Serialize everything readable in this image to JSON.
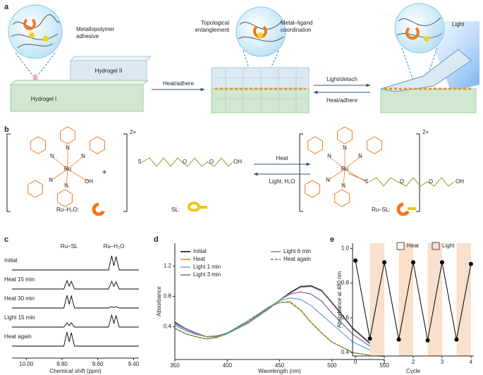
{
  "panel_labels": [
    "a",
    "b",
    "c",
    "d",
    "e"
  ],
  "diagram_a": {
    "adhesive_label": [
      "Metallopolymer",
      "adhesive"
    ],
    "hydrogel_2": "Hydrogel II",
    "hydrogel_1": "Hydrogel I",
    "step_1": "Heat/adhere",
    "entanglement_label": [
      "Topological",
      "entanglement"
    ],
    "coordination_label": [
      "Metal–ligand",
      "coordination"
    ],
    "forward": "Light/detach",
    "reverse": "Heat/adhere",
    "light": "Light"
  },
  "diagram_b": {
    "complex_1": {
      "charge": "2+",
      "atoms": [
        "N",
        "N",
        "N",
        "Ru",
        "N",
        "N",
        "OH"
      ]
    },
    "plus": "+",
    "ligand_atoms": [
      "S",
      "O",
      "O",
      "OH"
    ],
    "forward": "Heat",
    "reverse": "Light, H₂O",
    "complex_2": {
      "charge": "2+",
      "atoms": [
        "N",
        "N",
        "N",
        "Ru",
        "N",
        "N",
        "S",
        "O",
        "O",
        "OH"
      ]
    },
    "key": [
      "Ru–H₂O:",
      "SL:",
      "Ru–SL:"
    ]
  },
  "chart_data": [
    {
      "type": "spectra",
      "xlabel": "Chemical shift (ppm)",
      "annotations": [
        "Ru–SL",
        "Ru–H₂O"
      ],
      "xlim": [
        10.08,
        9.37
      ],
      "xticks": [
        {
          "value": 10,
          "label": "10.00"
        },
        {
          "value": 9.8,
          "label": "9.80"
        },
        {
          "value": 9.6,
          "label": "9.60"
        },
        {
          "value": 9.4,
          "label": "9.40"
        }
      ],
      "x": [
        10.08,
        9.79,
        9.772,
        9.76,
        9.748,
        9.73,
        9.54,
        9.522,
        9.51,
        9.498,
        9.48,
        9.37
      ],
      "color": "#000000",
      "series": [
        {
          "name": "Initial",
          "values": [
            0,
            0,
            0,
            0,
            0,
            0,
            0,
            1.0,
            0.3,
            0.95,
            0,
            0
          ]
        },
        {
          "name": "Heat 15 min",
          "values": [
            0,
            0,
            0.6,
            0.2,
            0.55,
            0,
            0,
            0.55,
            0.18,
            0.5,
            0,
            0
          ]
        },
        {
          "name": "Heat 30 min",
          "values": [
            0,
            0,
            0.9,
            0.3,
            0.85,
            0,
            0,
            0.1,
            0.03,
            0.1,
            0,
            0
          ]
        },
        {
          "name": "Light 15 min",
          "values": [
            0,
            0,
            0.3,
            0.1,
            0.3,
            0,
            0,
            0.85,
            0.28,
            0.8,
            0,
            0
          ]
        },
        {
          "name": "Heat again",
          "values": [
            0,
            0,
            1.0,
            0.3,
            0.95,
            0,
            0,
            0,
            0,
            0,
            0,
            0
          ]
        }
      ]
    },
    {
      "type": "line",
      "xlabel": "Wavelength (nm)",
      "ylabel": "Absorbance",
      "xlim": [
        350,
        550
      ],
      "xticks": [
        350,
        400,
        450,
        500,
        550
      ],
      "ylim": [
        -0.03,
        1.5
      ],
      "yticks": [
        0.4,
        0.8,
        1.2
      ],
      "x": [
        350,
        360,
        370,
        380,
        390,
        400,
        420,
        440,
        450,
        460,
        470,
        480,
        490,
        500,
        520,
        540,
        550
      ],
      "series": [
        {
          "name": "Initial",
          "color": "#000000",
          "values": [
            0.46,
            0.38,
            0.32,
            0.27,
            0.27,
            0.31,
            0.45,
            0.64,
            0.75,
            0.85,
            0.93,
            0.94,
            0.88,
            0.72,
            0.38,
            0.14,
            0.08
          ]
        },
        {
          "name": "Heat",
          "color": "#e8821e",
          "values": [
            0.38,
            0.31,
            0.27,
            0.24,
            0.26,
            0.31,
            0.48,
            0.66,
            0.72,
            0.73,
            0.62,
            0.46,
            0.32,
            0.2,
            0.06,
            0.02,
            0.01
          ]
        },
        {
          "name": "Light 1 min",
          "color": "#6fa8dc",
          "values": [
            0.42,
            0.35,
            0.3,
            0.27,
            0.28,
            0.32,
            0.48,
            0.66,
            0.74,
            0.78,
            0.76,
            0.68,
            0.56,
            0.44,
            0.2,
            0.07,
            0.05
          ]
        },
        {
          "name": "Light 3 min",
          "color": "#8e5fb5",
          "values": [
            0.44,
            0.37,
            0.31,
            0.27,
            0.28,
            0.31,
            0.46,
            0.65,
            0.75,
            0.83,
            0.86,
            0.83,
            0.74,
            0.58,
            0.3,
            0.11,
            0.07
          ]
        },
        {
          "name": "Light 6 min",
          "color": "#8a8a8a",
          "values": [
            0.45,
            0.38,
            0.32,
            0.27,
            0.27,
            0.31,
            0.45,
            0.64,
            0.75,
            0.84,
            0.92,
            0.93,
            0.87,
            0.71,
            0.37,
            0.13,
            0.08
          ]
        },
        {
          "name": "Heat again",
          "color": "#3a9a3a",
          "linestyle": "dashed",
          "values": [
            0.38,
            0.31,
            0.27,
            0.24,
            0.26,
            0.31,
            0.48,
            0.66,
            0.72,
            0.72,
            0.62,
            0.46,
            0.32,
            0.2,
            0.06,
            0.02,
            0.01
          ]
        }
      ]
    },
    {
      "type": "cycle",
      "xlabel": "Cycle",
      "ylabel": "Absorbance at 480 nm",
      "xlim": [
        -0.1,
        4.1
      ],
      "xticks": [
        0,
        1,
        2,
        3,
        4
      ],
      "ylim": [
        0.38,
        1.03
      ],
      "yticks": [
        0.4,
        0.6,
        0.8,
        {
          "value": 1,
          "label": "1.0"
        }
      ],
      "x": [
        0,
        0.5,
        1,
        1.5,
        2,
        2.5,
        3,
        3.5,
        4
      ],
      "values": [
        0.93,
        0.48,
        0.92,
        0.475,
        0.92,
        0.47,
        0.92,
        0.475,
        0.91
      ],
      "color": "#000000",
      "bands": [
        [
          0.5,
          1
        ],
        [
          1.5,
          2
        ],
        [
          2.5,
          3
        ],
        [
          3.5,
          4
        ]
      ],
      "legend": [
        {
          "name": "Heat",
          "color": "#ffffff"
        },
        {
          "name": "Light",
          "color": "#f9e0cc"
        }
      ]
    }
  ]
}
